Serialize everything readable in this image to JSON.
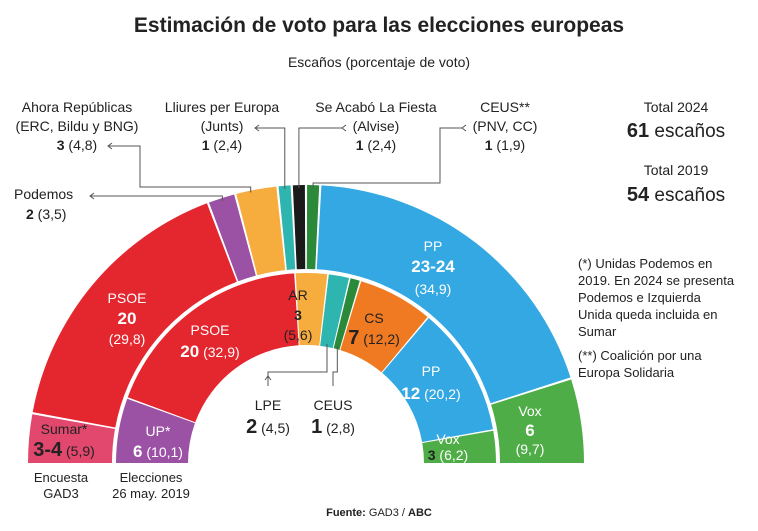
{
  "chart_data": {
    "type": "pie",
    "title": "Estimación de voto para las elecciones europeas",
    "subtitle": "Escaños (porcentaje de voto)",
    "rings": [
      {
        "name": "Encuesta GAD3",
        "label_lines": [
          "Encuesta",
          "GAD3"
        ],
        "total_seats": 61,
        "total_label": "Total 2024",
        "total_value": "61 escaños",
        "parties": [
          {
            "key": "sumar",
            "name": "Sumar*",
            "seats": "3-4",
            "vote": 5.9,
            "seats_mid": 3.5,
            "color": "#e2476e"
          },
          {
            "key": "psoe",
            "name": "PSOE",
            "seats": "20",
            "vote": 29.8,
            "seats_mid": 20,
            "color": "#e4262e"
          },
          {
            "key": "podemos",
            "name": "Podemos",
            "seats": "2",
            "vote": 3.5,
            "seats_mid": 2,
            "color": "#9b52a5"
          },
          {
            "key": "ahora",
            "name": "Ahora Repúblicas",
            "sublabel": "(ERC, Bildu y BNG)",
            "seats": "3",
            "vote": 4.8,
            "seats_mid": 3,
            "color": "#f7ad3e"
          },
          {
            "key": "lliures",
            "name": "Lliures per Europa",
            "sublabel": "(Junts)",
            "seats": "1",
            "vote": 2.4,
            "seats_mid": 1,
            "color": "#2fb5b0"
          },
          {
            "key": "salf",
            "name": "Se Acabó La Fiesta",
            "sublabel": "(Alvise)",
            "seats": "1",
            "vote": 2.4,
            "seats_mid": 1,
            "color": "#1a1a1a"
          },
          {
            "key": "ceus",
            "name": "CEUS**",
            "sublabel": "(PNV, CC)",
            "seats": "1",
            "vote": 1.9,
            "seats_mid": 1,
            "color": "#2a8a3a"
          },
          {
            "key": "pp",
            "name": "PP",
            "seats": "23-24",
            "vote": 34.9,
            "seats_mid": 23.5,
            "color": "#33a8e3"
          },
          {
            "key": "vox",
            "name": "Vox",
            "seats": "6",
            "vote": 9.7,
            "seats_mid": 6,
            "color": "#4fad47"
          }
        ]
      },
      {
        "name": "Elecciones 26 may. 2019",
        "label_lines": [
          "Elecciones",
          "26 may. 2019"
        ],
        "total_seats": 54,
        "total_label": "Total 2019",
        "total_value": "54 escaños",
        "parties": [
          {
            "key": "up",
            "name": "UP*",
            "seats": "6",
            "vote": 10.1,
            "seats_mid": 6,
            "color": "#9b52a5"
          },
          {
            "key": "psoe",
            "name": "PSOE",
            "seats": "20",
            "vote": 32.9,
            "seats_mid": 20,
            "color": "#e4262e"
          },
          {
            "key": "ar",
            "name": "AR",
            "seats": "3",
            "vote": 5.6,
            "seats_mid": 3,
            "color": "#f7ad3e"
          },
          {
            "key": "lpe",
            "name": "LPE",
            "seats": "2",
            "vote": 4.5,
            "seats_mid": 2,
            "color": "#2fb5b0"
          },
          {
            "key": "ceus",
            "name": "CEUS",
            "seats": "1",
            "vote": 2.8,
            "seats_mid": 1,
            "color": "#2a8a3a"
          },
          {
            "key": "cs",
            "name": "CS",
            "seats": "7",
            "vote": 12.2,
            "seats_mid": 7,
            "color": "#ef7a22"
          },
          {
            "key": "pp",
            "name": "PP",
            "seats": "12",
            "vote": 20.2,
            "seats_mid": 12,
            "color": "#33a8e3"
          },
          {
            "key": "vox",
            "name": "Vox",
            "seats": "3",
            "vote": 6.2,
            "seats_mid": 3,
            "color": "#4fad47"
          }
        ]
      }
    ],
    "notes": [
      "(*) Unidas Podemos en 2019. En 2024 se presenta Podemos e Izquierda Unida queda incluida en Sumar",
      "(**) Coalición por una Europa Solidaria"
    ],
    "note_lines": [
      [
        "(*) Unidas Podemos en",
        "2019. En 2024 se presenta",
        "Podemos e Izquierda",
        "Unida queda incluida en",
        "Sumar"
      ],
      [
        "(**) Coalición por una",
        "Europa Solidaria"
      ]
    ],
    "source_label": "Fuente:",
    "source_value": "GAD3 / ABC"
  }
}
